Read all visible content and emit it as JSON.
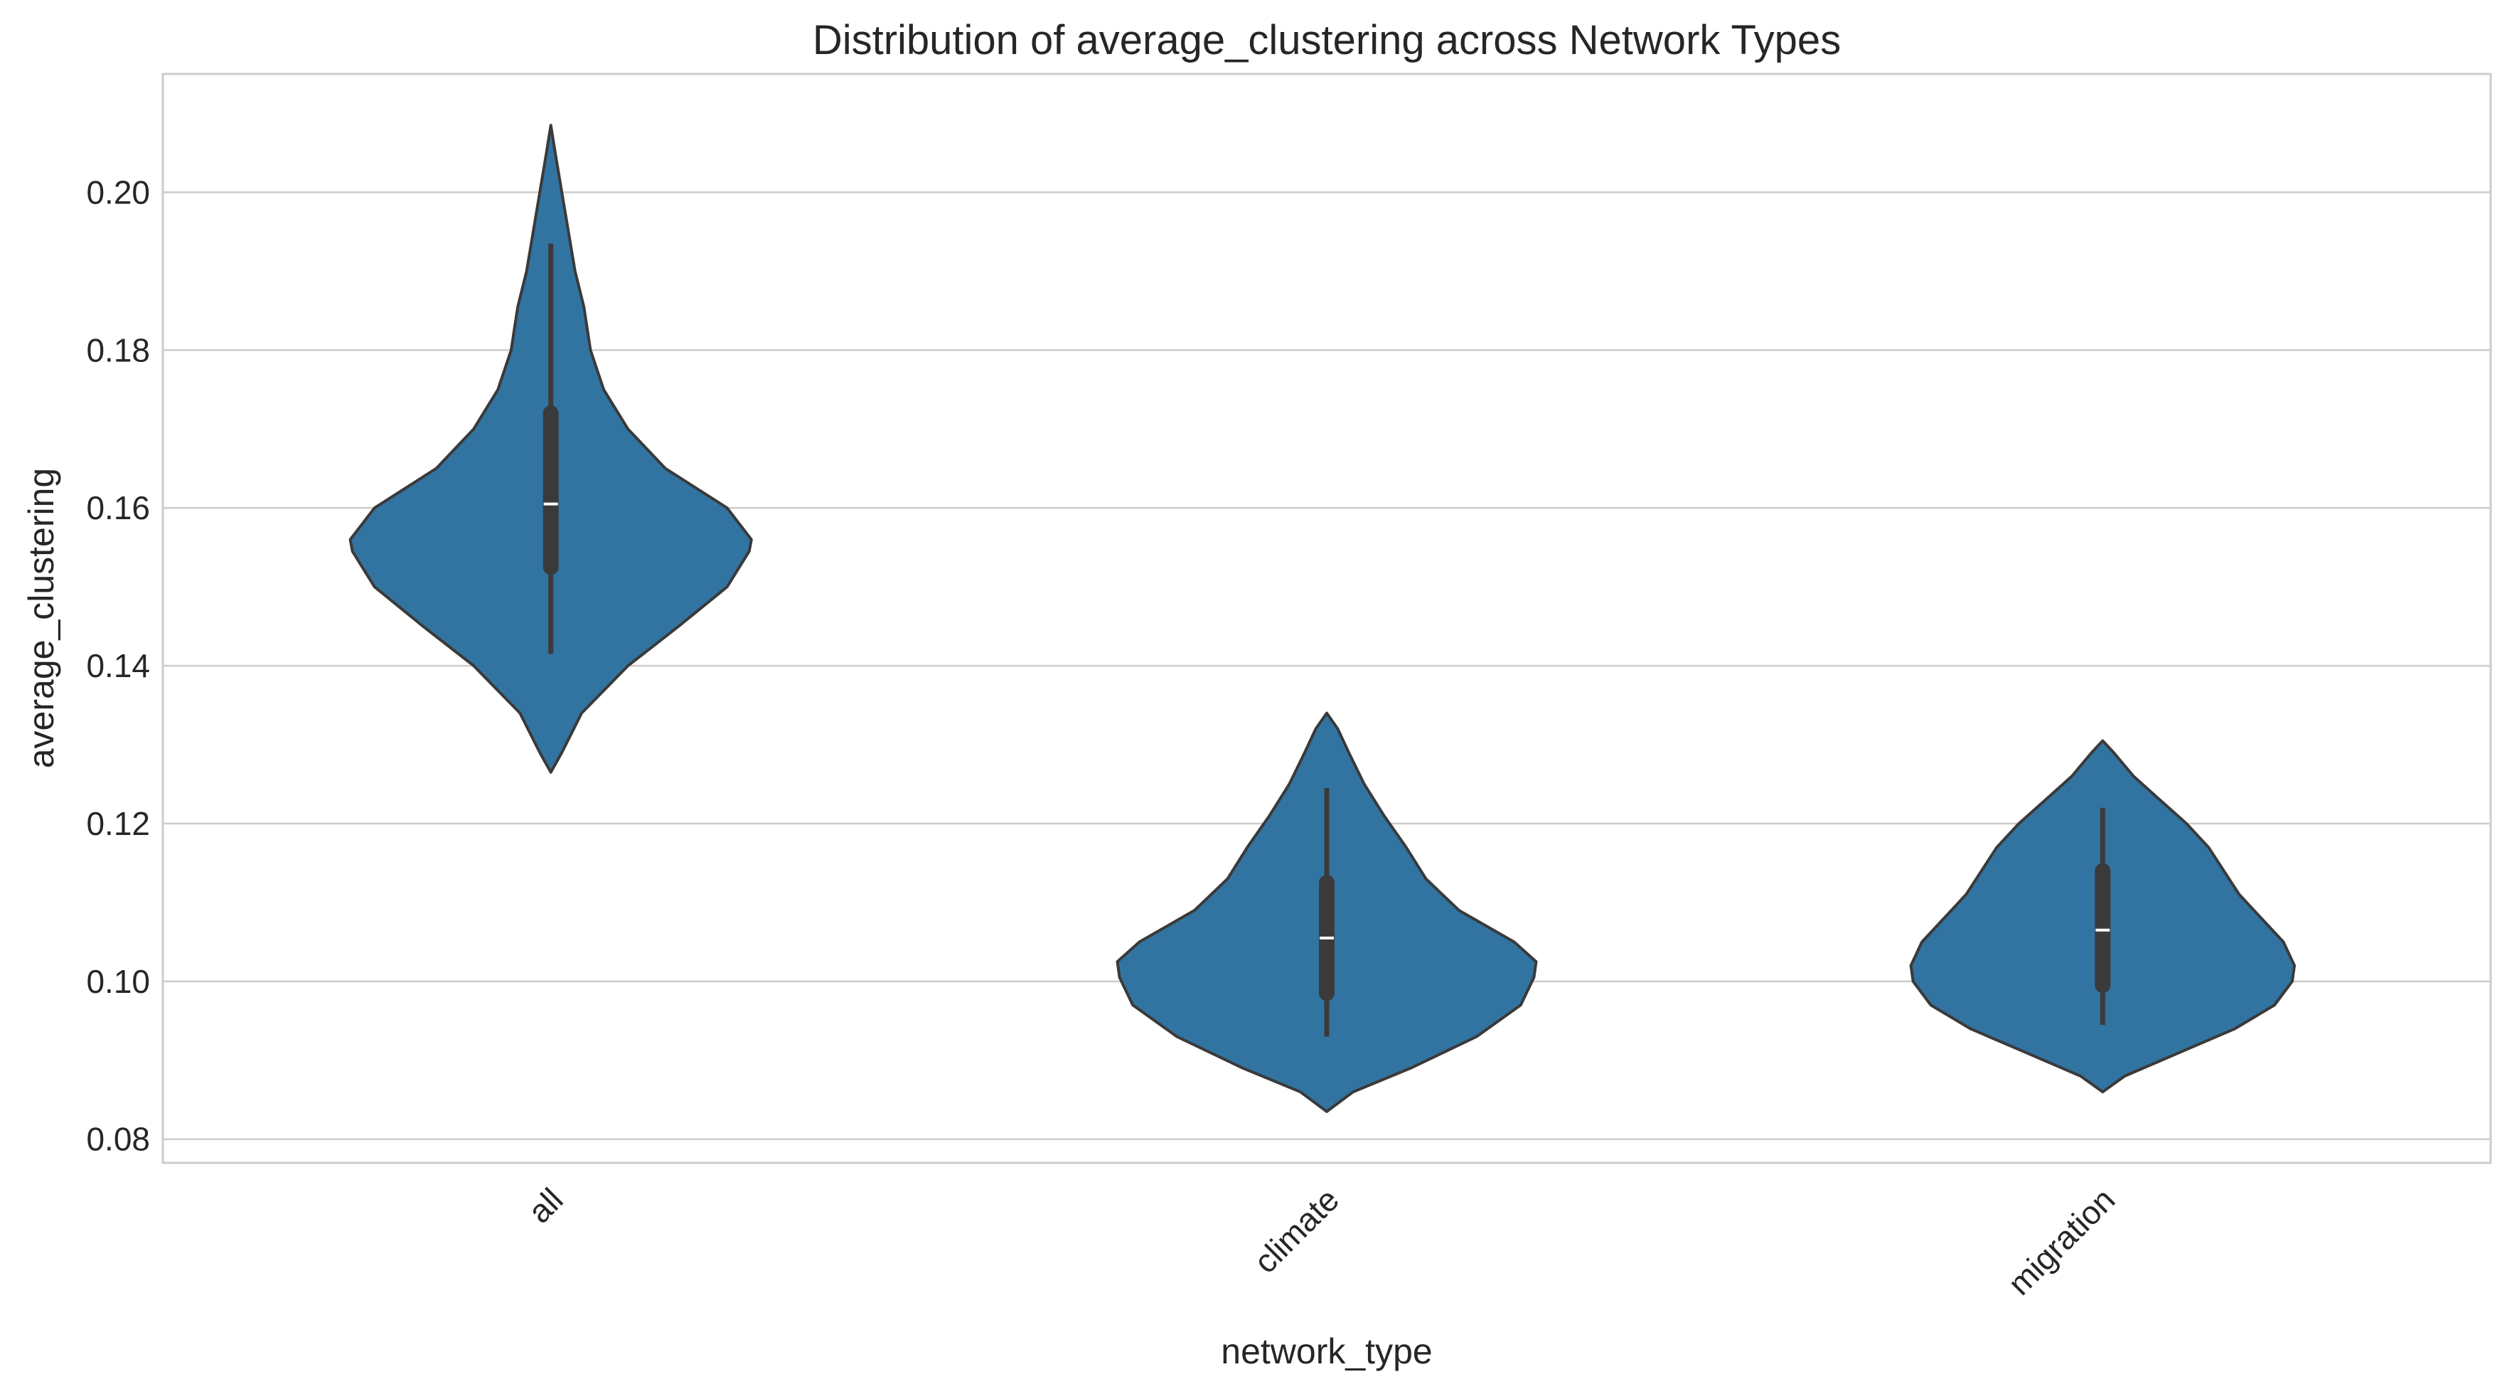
{
  "chart_data": {
    "type": "violin",
    "title": "Distribution of average_clustering across Network Types",
    "xlabel": "network_type",
    "ylabel": "average_clustering",
    "ylim": [
      0.077,
      0.215
    ],
    "yticks": [
      0.08,
      0.1,
      0.12,
      0.14,
      0.16,
      0.18,
      0.2
    ],
    "ytick_labels": [
      "0.08",
      "0.10",
      "0.12",
      "0.14",
      "0.16",
      "0.18",
      "0.20"
    ],
    "grid": true,
    "color": "#3274a1",
    "edge_color": "#3a3a3a",
    "categories": [
      "all",
      "climate",
      "migration"
    ],
    "violins": [
      {
        "category": "all",
        "min": 0.1415,
        "q1": 0.1525,
        "median": 0.1605,
        "q3": 0.172,
        "max": 0.1935,
        "range": [
          0.1265,
          0.2085
        ],
        "density": [
          [
            0.1265,
            0.0
          ],
          [
            0.129,
            0.05
          ],
          [
            0.134,
            0.14
          ],
          [
            0.14,
            0.35
          ],
          [
            0.145,
            0.58
          ],
          [
            0.15,
            0.8
          ],
          [
            0.1545,
            0.9
          ],
          [
            0.156,
            0.91
          ],
          [
            0.16,
            0.8
          ],
          [
            0.165,
            0.52
          ],
          [
            0.17,
            0.35
          ],
          [
            0.175,
            0.24
          ],
          [
            0.18,
            0.18
          ],
          [
            0.1855,
            0.15
          ],
          [
            0.19,
            0.11
          ],
          [
            0.195,
            0.08
          ],
          [
            0.2,
            0.05
          ],
          [
            0.205,
            0.02
          ],
          [
            0.2085,
            0.0
          ]
        ]
      },
      {
        "category": "climate",
        "min": 0.093,
        "q1": 0.0985,
        "median": 0.1055,
        "q3": 0.1125,
        "max": 0.1245,
        "range": [
          0.0835,
          0.134
        ],
        "density": [
          [
            0.0835,
            0.0
          ],
          [
            0.086,
            0.12
          ],
          [
            0.089,
            0.38
          ],
          [
            0.093,
            0.68
          ],
          [
            0.097,
            0.88
          ],
          [
            0.1005,
            0.94
          ],
          [
            0.1025,
            0.95
          ],
          [
            0.105,
            0.85
          ],
          [
            0.109,
            0.6
          ],
          [
            0.113,
            0.45
          ],
          [
            0.117,
            0.36
          ],
          [
            0.121,
            0.26
          ],
          [
            0.125,
            0.17
          ],
          [
            0.129,
            0.1
          ],
          [
            0.132,
            0.05
          ],
          [
            0.134,
            0.0
          ]
        ]
      },
      {
        "category": "migration",
        "min": 0.0945,
        "q1": 0.0995,
        "median": 0.1065,
        "q3": 0.114,
        "max": 0.122,
        "range": [
          0.086,
          0.1305
        ],
        "density": [
          [
            0.086,
            0.0
          ],
          [
            0.088,
            0.1
          ],
          [
            0.091,
            0.35
          ],
          [
            0.094,
            0.6
          ],
          [
            0.097,
            0.78
          ],
          [
            0.1,
            0.86
          ],
          [
            0.102,
            0.87
          ],
          [
            0.105,
            0.82
          ],
          [
            0.108,
            0.72
          ],
          [
            0.111,
            0.62
          ],
          [
            0.114,
            0.55
          ],
          [
            0.117,
            0.48
          ],
          [
            0.12,
            0.38
          ],
          [
            0.123,
            0.26
          ],
          [
            0.126,
            0.14
          ],
          [
            0.129,
            0.05
          ],
          [
            0.1305,
            0.0
          ]
        ]
      }
    ]
  }
}
